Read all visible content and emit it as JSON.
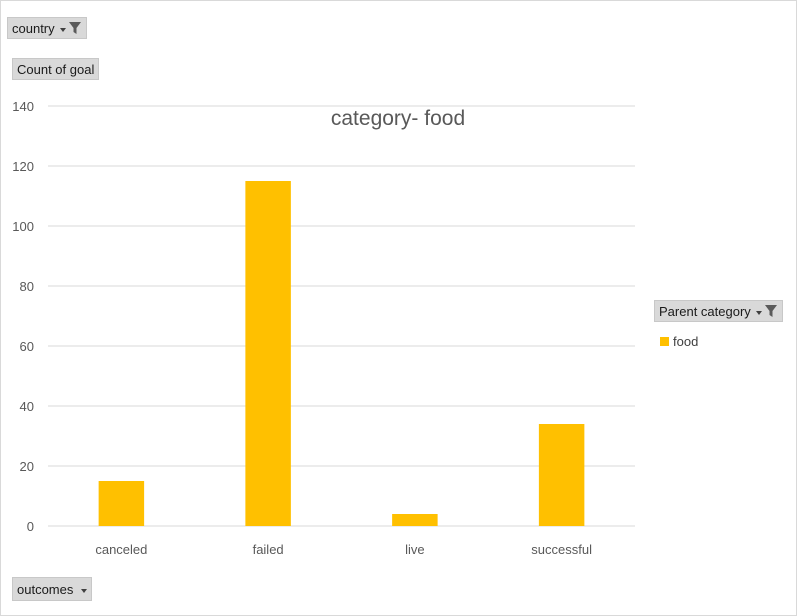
{
  "filters": {
    "country_label": "country",
    "outcomes_label": "outcomes"
  },
  "value_field_label": "Count of goal",
  "legend": {
    "field_label": "Parent category",
    "items": [
      {
        "label": "food",
        "color": "#FFC000"
      }
    ]
  },
  "icons": {
    "dropdown": "chevron-down-icon",
    "filter": "filter-icon"
  },
  "chart_data": {
    "type": "bar",
    "title": "category- food",
    "categories": [
      "canceled",
      "failed",
      "live",
      "successful"
    ],
    "series": [
      {
        "name": "food",
        "values": [
          15,
          115,
          4,
          34
        ],
        "color": "#FFC000"
      }
    ],
    "ylim": [
      0,
      140
    ],
    "yticks": [
      0,
      20,
      40,
      60,
      80,
      100,
      120,
      140
    ],
    "grid": true,
    "legend_position": "right"
  }
}
